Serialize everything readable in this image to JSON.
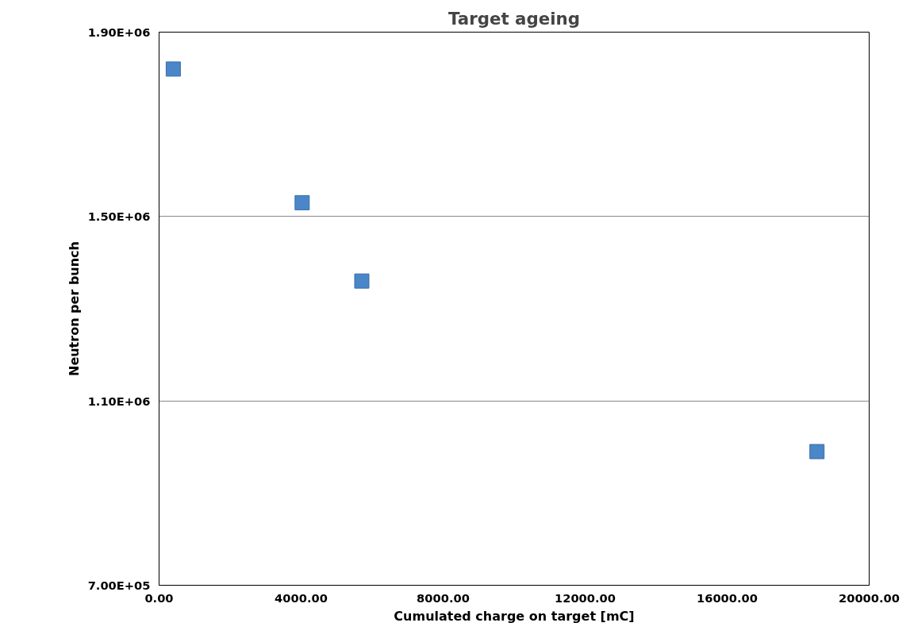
{
  "chart_data": {
    "type": "scatter",
    "title": "Target ageing",
    "xlabel": "Cumulated charge on target [mC]",
    "ylabel": "Neutron per bunch",
    "x": [
      400,
      4030,
      5710,
      18530
    ],
    "series": [
      {
        "color": "#4a86c8",
        "values": [
          1820000,
          1530000,
          1360000,
          990000
        ]
      }
    ],
    "marker": "square",
    "grid": "y",
    "xlim": [
      0,
      20000
    ],
    "ylim": [
      700000,
      1900000
    ],
    "xticks": [
      {
        "value": 0,
        "label": "0.00"
      },
      {
        "value": 4000,
        "label": "4000.00"
      },
      {
        "value": 8000,
        "label": "8000.00"
      },
      {
        "value": 12000,
        "label": "12000.00"
      },
      {
        "value": 16000,
        "label": "16000.00"
      },
      {
        "value": 20000,
        "label": "20000.00"
      }
    ],
    "yticks": [
      {
        "value": 700000,
        "label": "7.00E+05"
      },
      {
        "value": 1100000,
        "label": "1.10E+06"
      },
      {
        "value": 1500000,
        "label": "1.50E+06"
      },
      {
        "value": 1900000,
        "label": "1.90E+06"
      }
    ]
  }
}
